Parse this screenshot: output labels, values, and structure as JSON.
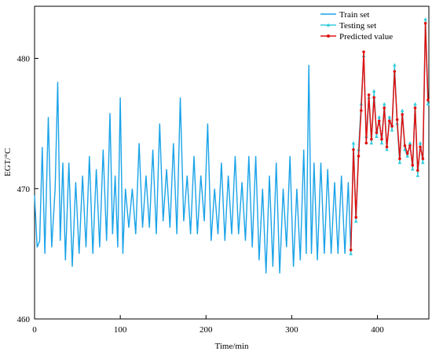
{
  "chart_data": {
    "type": "line",
    "xlabel": "Time/min",
    "ylabel": "EGT/°C",
    "xlim": [
      0,
      460
    ],
    "ylim": [
      460,
      484
    ],
    "xticks": [
      0,
      100,
      200,
      300,
      400
    ],
    "yticks": [
      460,
      470,
      480
    ],
    "legend_placement": "top-right",
    "grid": false,
    "series": [
      {
        "name": "Train set",
        "color": "#1aa3e8",
        "marker": "none",
        "x": [
          0,
          3,
          6,
          9,
          12,
          16,
          20,
          24,
          27,
          30,
          33,
          36,
          40,
          44,
          48,
          52,
          56,
          60,
          64,
          68,
          72,
          76,
          80,
          84,
          88,
          91,
          94,
          97,
          100,
          103,
          106,
          110,
          114,
          118,
          122,
          126,
          130,
          134,
          138,
          142,
          146,
          150,
          154,
          158,
          162,
          166,
          170,
          174,
          178,
          182,
          186,
          190,
          194,
          198,
          202,
          206,
          210,
          214,
          218,
          222,
          226,
          230,
          234,
          238,
          242,
          246,
          250,
          254,
          258,
          262,
          266,
          270,
          274,
          278,
          282,
          286,
          290,
          294,
          298,
          302,
          306,
          310,
          314,
          317,
          320,
          323,
          326,
          330,
          334,
          338,
          342,
          346,
          350,
          354,
          358,
          362,
          366,
          369
        ],
        "y": [
          469.5,
          465.5,
          466.0,
          473.2,
          465.0,
          475.5,
          465.5,
          470.0,
          478.2,
          466.0,
          472.0,
          464.5,
          472.0,
          464.0,
          470.5,
          465.0,
          471.0,
          465.5,
          472.5,
          465.0,
          471.5,
          465.5,
          473.0,
          466.0,
          475.8,
          466.5,
          471.0,
          465.5,
          477.0,
          465.0,
          470.0,
          467.0,
          470.0,
          466.5,
          473.5,
          467.0,
          471.0,
          467.0,
          473.0,
          466.5,
          475.0,
          467.5,
          471.5,
          467.0,
          473.5,
          466.5,
          477.0,
          467.5,
          471.0,
          466.5,
          472.5,
          466.5,
          471.0,
          467.5,
          475.0,
          466.0,
          470.0,
          466.5,
          472.0,
          466.0,
          471.0,
          466.5,
          472.5,
          466.5,
          470.5,
          466.0,
          472.5,
          465.5,
          472.5,
          464.5,
          470.0,
          463.5,
          471.0,
          464.0,
          472.0,
          463.5,
          470.0,
          465.5,
          472.5,
          464.0,
          470.0,
          464.5,
          473.0,
          465.0,
          479.5,
          465.0,
          472.0,
          464.5,
          472.0,
          465.0,
          471.5,
          465.0,
          470.5,
          465.0,
          471.0,
          465.0,
          470.5,
          465.0
        ]
      },
      {
        "name": "Testing set",
        "color": "#33ccdd",
        "marker": "triangle",
        "x": [
          369,
          372,
          375,
          378,
          381,
          384,
          387,
          390,
          393,
          396,
          399,
          402,
          405,
          408,
          411,
          414,
          417,
          420,
          423,
          426,
          429,
          432,
          435,
          438,
          441,
          444,
          447,
          450,
          453,
          456,
          459
        ],
        "y": [
          465.0,
          473.5,
          467.5,
          473.0,
          476.5,
          480.2,
          474.0,
          477.0,
          473.5,
          477.5,
          474.0,
          475.5,
          473.5,
          476.5,
          473.0,
          475.5,
          474.5,
          479.5,
          475.0,
          472.0,
          476.0,
          473.0,
          472.5,
          473.5,
          471.5,
          476.5,
          471.0,
          473.5,
          472.0,
          483.0,
          476.5
        ]
      },
      {
        "name": "Predicted value",
        "color": "#e01010",
        "marker": "circle",
        "x": [
          369,
          372,
          375,
          378,
          381,
          384,
          387,
          390,
          393,
          396,
          399,
          402,
          405,
          408,
          411,
          414,
          417,
          420,
          423,
          426,
          429,
          432,
          435,
          438,
          441,
          444,
          447,
          450,
          453,
          456,
          459
        ],
        "y": [
          465.3,
          473.0,
          467.8,
          472.5,
          476.0,
          480.5,
          473.5,
          477.2,
          473.8,
          477.0,
          474.3,
          475.2,
          473.8,
          476.2,
          473.2,
          475.2,
          474.8,
          479.0,
          475.3,
          472.3,
          475.7,
          473.3,
          472.7,
          473.3,
          471.8,
          476.2,
          471.4,
          473.2,
          472.3,
          482.7,
          476.8
        ]
      }
    ]
  }
}
